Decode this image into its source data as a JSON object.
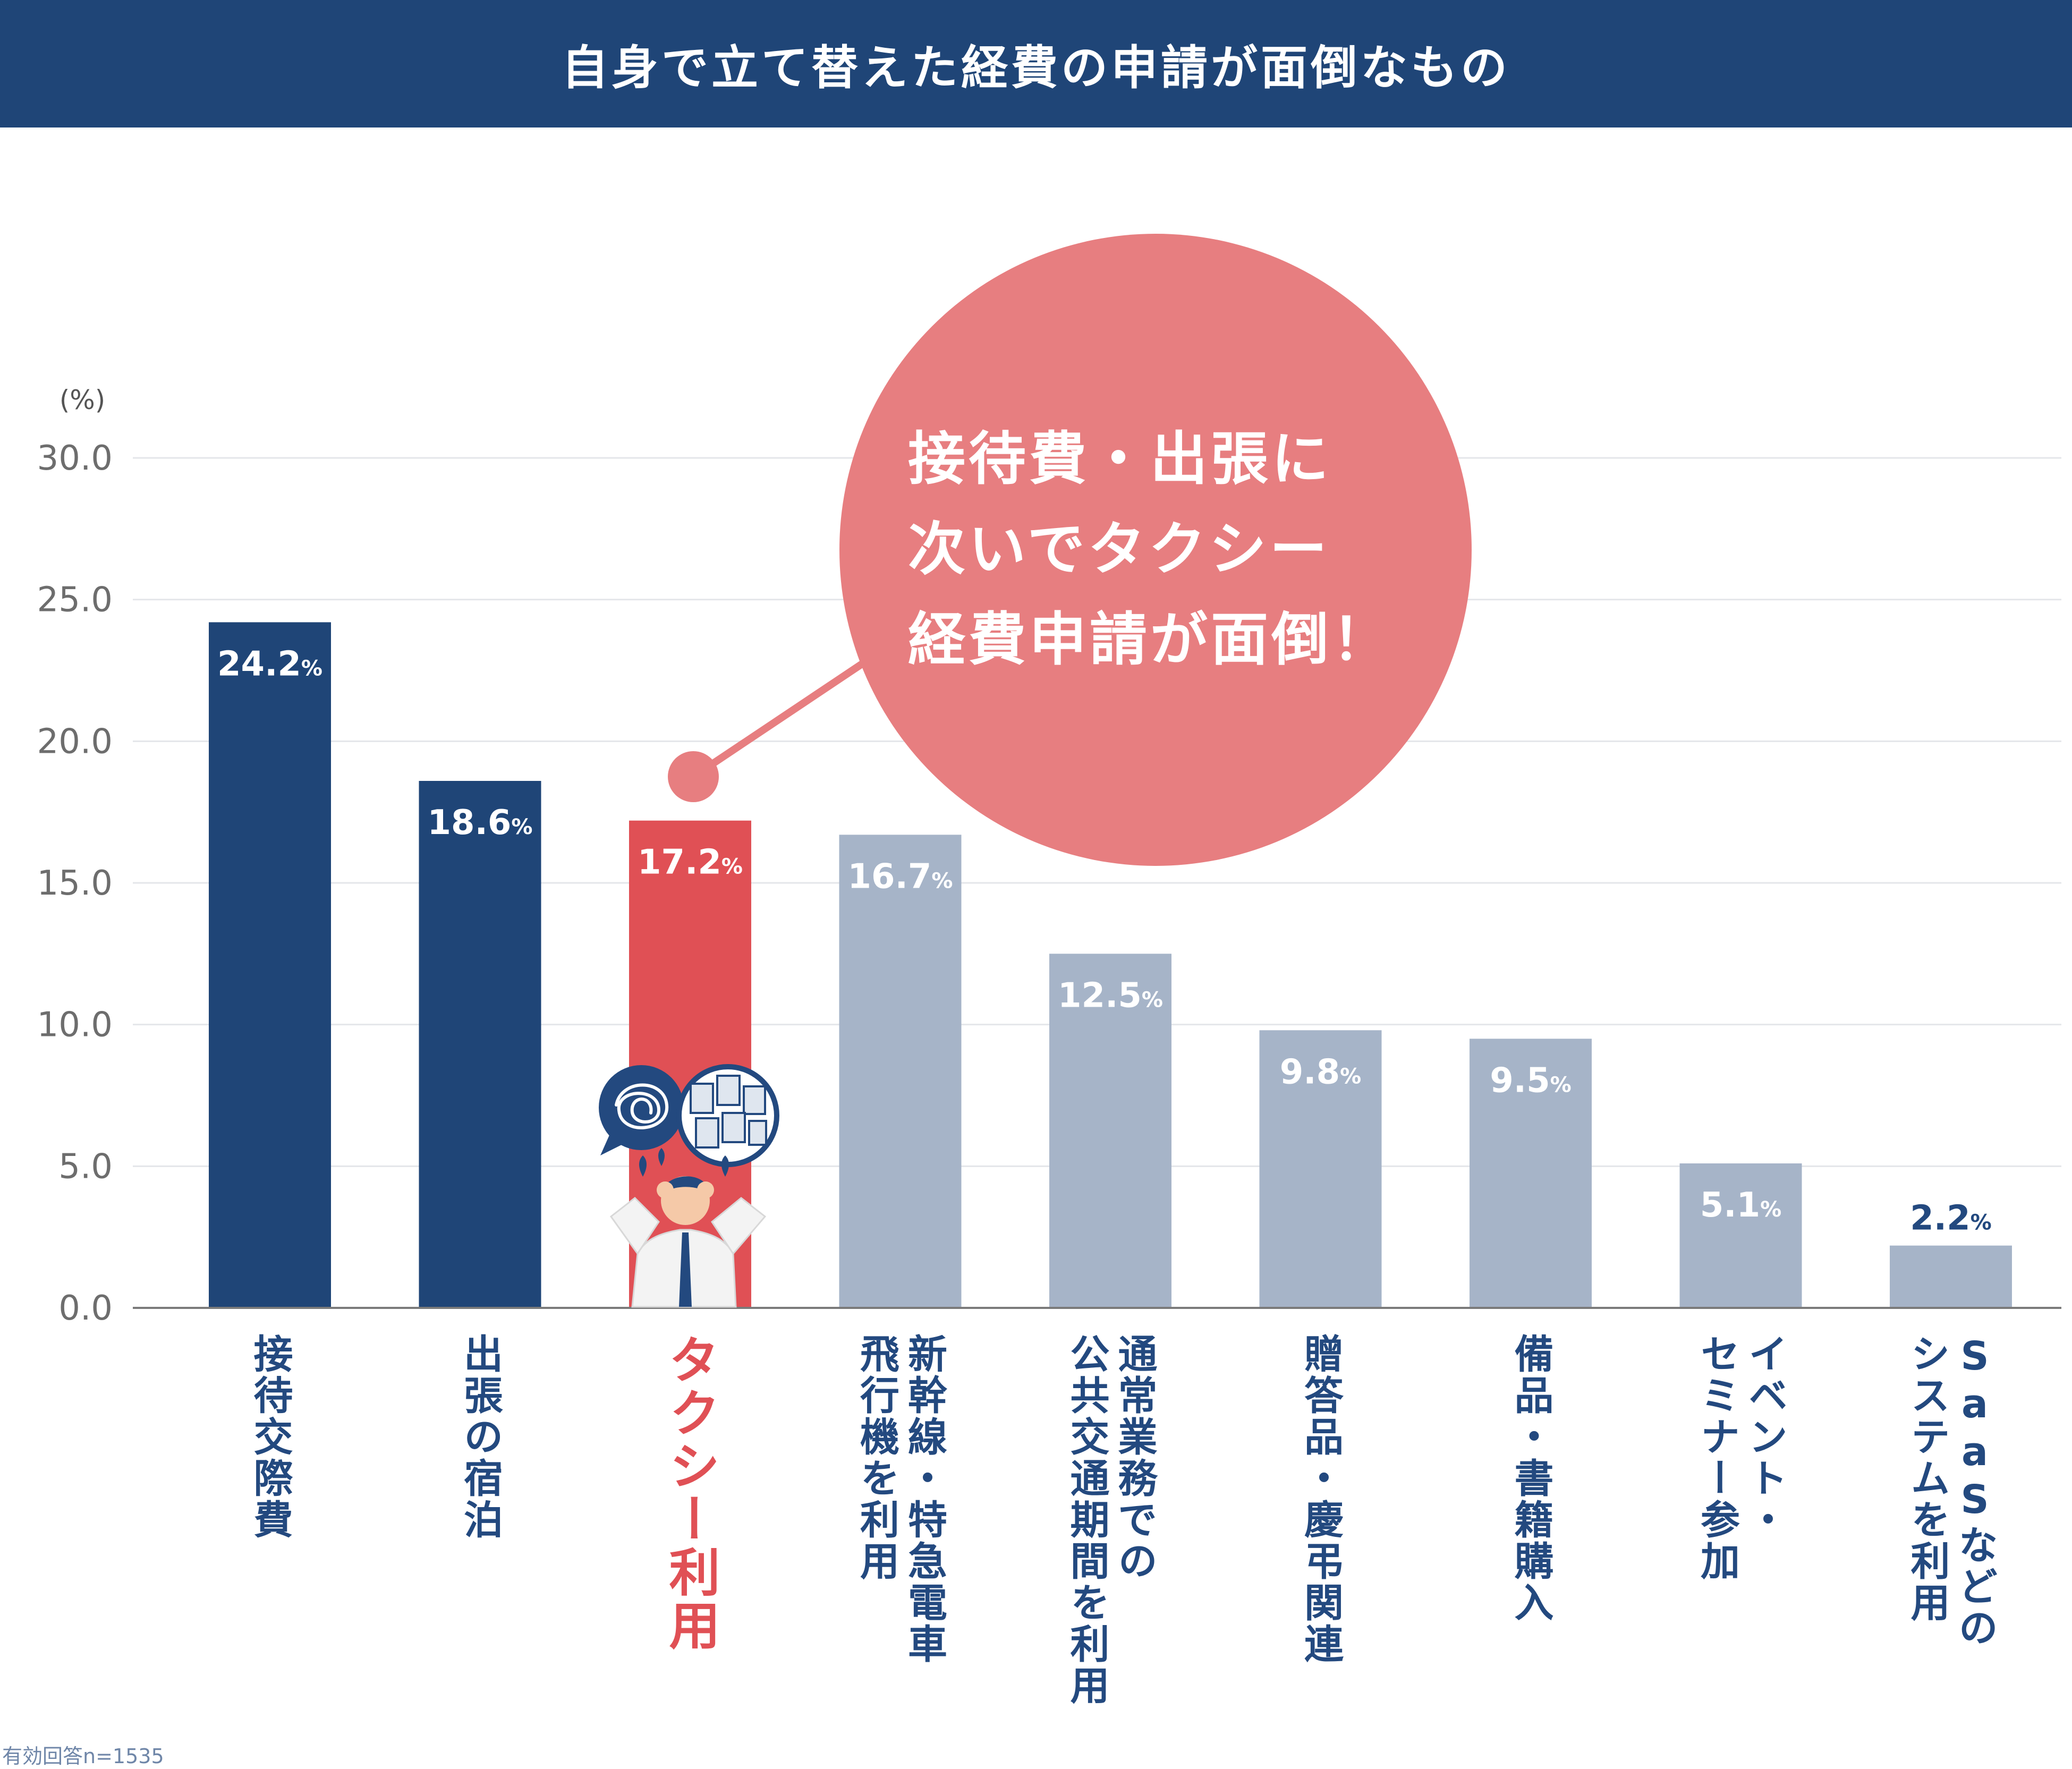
{
  "title": "自身で立て替えた経費の申請が面倒なもの",
  "unit_label": "(%)",
  "callout": "接待費・出張に\n次いでタクシー\n経費申請が面倒！",
  "footnote": "有効回答n=1535",
  "colors": {
    "title_bar": "#1f4577",
    "bar_dark": "#1f4577",
    "bar_highlight": "#e05055",
    "bar_light": "#a6b4c8",
    "callout": "#e77e80",
    "label_text": "#23497f"
  },
  "chart_data": {
    "type": "bar",
    "title": "自身で立て替えた経費の申請が面倒なもの",
    "ylabel": "(%)",
    "ylim": [
      0,
      30
    ],
    "yticks": [
      "0.0",
      "5.0",
      "10.0",
      "15.0",
      "20.0",
      "25.0",
      "30.0"
    ],
    "grid": true,
    "unit_suffix": "%",
    "categories": [
      "接待交際費",
      "出張の宿泊",
      "タクシー利用",
      "新幹線・特急電車\n飛行機を利用",
      "通常業務での\n公共交通期間を利用",
      "贈答品・慶弔関連",
      "備品・書籍購入",
      "イベント・\nセミナー参加",
      "SaaSなどの\nシステムを利用"
    ],
    "values": [
      24.2,
      18.6,
      17.2,
      16.7,
      12.5,
      9.8,
      9.5,
      5.1,
      2.2
    ],
    "value_labels": [
      "24.2",
      "18.6",
      "17.2",
      "16.7",
      "12.5",
      "9.8",
      "9.5",
      "5.1",
      "2.2"
    ],
    "bar_styles": [
      "dark",
      "dark",
      "highlight",
      "light",
      "light",
      "light",
      "light",
      "light",
      "light"
    ]
  }
}
